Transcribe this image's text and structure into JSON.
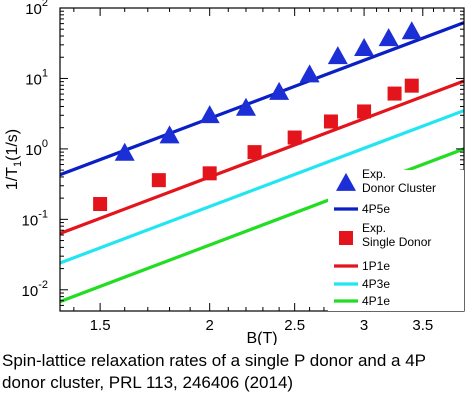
{
  "caption": {
    "line1": "Spin-lattice relaxation rates of a single P donor and a 4P",
    "line2": "donor cluster, PRL 113, 246406 (2014)"
  },
  "chart_data": {
    "type": "scatter",
    "title": "",
    "xlabel": "B(T)",
    "ylabel": "1/T",
    "ylabel_sub": "1",
    "ylabel_unit": "(1/s)",
    "x_scale": "log",
    "y_scale": "log",
    "xlim": [
      1.35,
      3.9
    ],
    "ylim": [
      0.005,
      100
    ],
    "x_ticks": [
      1.5,
      2,
      2.5,
      3,
      3.5
    ],
    "x_tick_labels": [
      "1.5",
      "2",
      "2.5",
      "3",
      "3.5"
    ],
    "y_ticks": [
      0.01,
      0.1,
      1,
      10,
      100
    ],
    "y_tick_labels": [
      {
        "base": "10",
        "exp": "-2"
      },
      {
        "base": "10",
        "exp": "-1"
      },
      {
        "base": "10",
        "exp": "0"
      },
      {
        "base": "10",
        "exp": "1"
      },
      {
        "base": "10",
        "exp": "2"
      }
    ],
    "grid": false,
    "legend_position": "bottom-right",
    "series": [
      {
        "name": "Exp. Donor Cluster",
        "legend_lines": [
          "Exp.",
          "Donor Cluster"
        ],
        "kind": "scatter",
        "marker": "triangle",
        "color": "#1c2fd6",
        "x": [
          1.6,
          1.8,
          2.0,
          2.2,
          2.4,
          2.6,
          2.8,
          3.0,
          3.2,
          3.4
        ],
        "y": [
          0.85,
          1.5,
          2.9,
          3.7,
          6.2,
          11,
          20,
          26,
          36,
          45
        ]
      },
      {
        "name": "4P5e",
        "legend_lines": [
          "4P5e"
        ],
        "kind": "line",
        "color": "#0a1fc4",
        "x": [
          1.35,
          3.9
        ],
        "y": [
          0.43,
          62
        ]
      },
      {
        "name": "Exp. Single Donor",
        "legend_lines": [
          "Exp.",
          "Single Donor"
        ],
        "kind": "scatter",
        "marker": "square",
        "color": "#e4141c",
        "x": [
          1.5,
          1.75,
          2.0,
          2.25,
          2.5,
          2.75,
          3.0,
          3.25,
          3.4
        ],
        "y": [
          0.165,
          0.36,
          0.45,
          0.9,
          1.45,
          2.45,
          3.4,
          6.1,
          7.9
        ]
      },
      {
        "name": "1P1e",
        "legend_lines": [
          "1P1e"
        ],
        "kind": "line",
        "color": "#e4141c",
        "x": [
          1.35,
          3.9
        ],
        "y": [
          0.063,
          9.2
        ]
      },
      {
        "name": "4P3e",
        "legend_lines": [
          "4P3e"
        ],
        "kind": "line",
        "color": "#21e6f2",
        "x": [
          1.35,
          3.9
        ],
        "y": [
          0.024,
          3.5
        ]
      },
      {
        "name": "4P1e",
        "legend_lines": [
          "4P1e"
        ],
        "kind": "line",
        "color": "#22dd22",
        "x": [
          1.35,
          3.9
        ],
        "y": [
          0.0068,
          1.0
        ]
      }
    ]
  }
}
